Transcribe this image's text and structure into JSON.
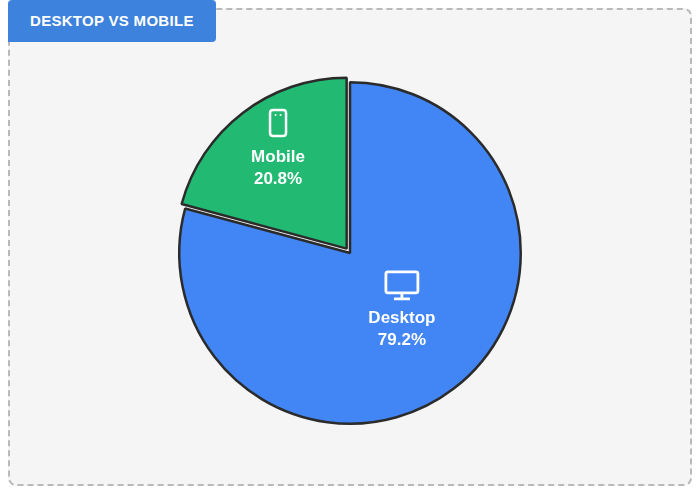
{
  "chart_data": {
    "type": "pie",
    "title": "DESKTOP VS MOBILE",
    "categories": [
      "Desktop",
      "Mobile"
    ],
    "values": [
      79.2,
      20.8
    ],
    "value_labels": [
      "79.2%",
      "20.8%"
    ],
    "colors": [
      "#4285f4",
      "#22b973"
    ],
    "data_labels": true
  }
}
